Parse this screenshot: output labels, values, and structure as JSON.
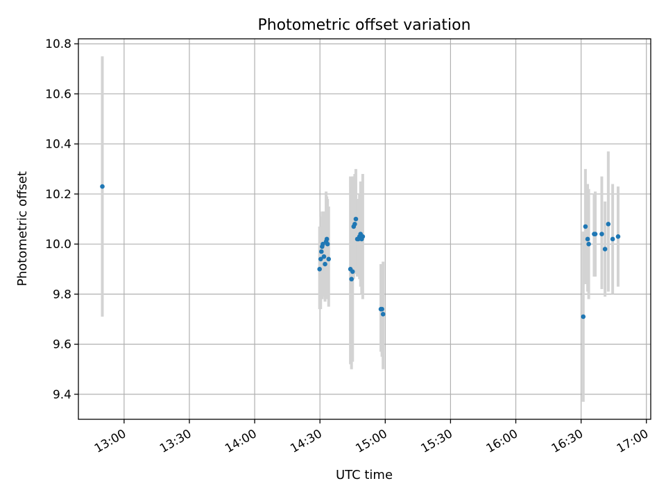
{
  "chart_data": {
    "type": "scatter",
    "title": "Photometric offset variation",
    "xlabel": "UTC time",
    "ylabel": "Photometric offset",
    "x_axis_type": "time",
    "xlim": [
      "12:39",
      "17:02"
    ],
    "ylim": [
      9.3,
      10.82
    ],
    "grid": true,
    "x_ticks": [
      "13:00",
      "13:30",
      "14:00",
      "14:30",
      "15:00",
      "15:30",
      "16:00",
      "16:30",
      "17:00"
    ],
    "y_ticks": [
      "9.4",
      "9.6",
      "9.8",
      "10.0",
      "10.2",
      "10.4",
      "10.6",
      "10.8"
    ],
    "marker_color": "#1f77b4",
    "errorbar_color": "#d3d3d3",
    "series": [
      {
        "points": [
          {
            "x": "12:50:00",
            "y": 10.23,
            "yerr": [
              9.71,
              10.75
            ]
          },
          {
            "x": "14:29:50",
            "y": 9.9,
            "yerr": [
              9.74,
              10.07
            ]
          },
          {
            "x": "14:30:20",
            "y": 9.94,
            "yerr": [
              9.74,
              10.05
            ]
          },
          {
            "x": "14:30:40",
            "y": 9.97,
            "yerr": [
              9.78,
              10.11
            ]
          },
          {
            "x": "14:31:00",
            "y": 9.99,
            "yerr": [
              9.78,
              10.13
            ]
          },
          {
            "x": "14:31:20",
            "y": 10.0,
            "yerr": [
              9.79,
              10.13
            ]
          },
          {
            "x": "14:31:50",
            "y": 9.95,
            "yerr": [
              9.8,
              10.13
            ]
          },
          {
            "x": "14:32:20",
            "y": 9.92,
            "yerr": [
              9.77,
              10.13
            ]
          },
          {
            "x": "14:32:50",
            "y": 10.01,
            "yerr": [
              9.79,
              10.21
            ]
          },
          {
            "x": "14:33:10",
            "y": 10.02,
            "yerr": [
              9.8,
              10.19
            ]
          },
          {
            "x": "14:33:30",
            "y": 10.0,
            "yerr": [
              9.78,
              10.18
            ]
          },
          {
            "x": "14:34:00",
            "y": 9.94,
            "yerr": [
              9.75,
              10.15
            ]
          },
          {
            "x": "14:44:00",
            "y": 9.9,
            "yerr": [
              9.52,
              10.27
            ]
          },
          {
            "x": "14:44:30",
            "y": 9.86,
            "yerr": [
              9.5,
              10.23
            ]
          },
          {
            "x": "14:45:00",
            "y": 9.89,
            "yerr": [
              9.53,
              10.27
            ]
          },
          {
            "x": "14:45:30",
            "y": 10.07,
            "yerr": [
              9.86,
              10.27
            ]
          },
          {
            "x": "14:46:00",
            "y": 10.08,
            "yerr": [
              9.88,
              10.28
            ]
          },
          {
            "x": "14:46:30",
            "y": 10.1,
            "yerr": [
              9.91,
              10.3
            ]
          },
          {
            "x": "14:47:10",
            "y": 10.02,
            "yerr": [
              9.87,
              10.18
            ]
          },
          {
            "x": "14:47:40",
            "y": 10.02,
            "yerr": [
              9.87,
              10.18
            ]
          },
          {
            "x": "14:48:10",
            "y": 10.03,
            "yerr": [
              9.86,
              10.2
            ]
          },
          {
            "x": "14:48:40",
            "y": 10.04,
            "yerr": [
              9.83,
              10.25
            ]
          },
          {
            "x": "14:49:10",
            "y": 10.02,
            "yerr": [
              9.8,
              10.25
            ]
          },
          {
            "x": "14:49:40",
            "y": 10.03,
            "yerr": [
              9.78,
              10.28
            ]
          },
          {
            "x": "14:58:00",
            "y": 9.74,
            "yerr": [
              9.57,
              9.92
            ]
          },
          {
            "x": "14:58:30",
            "y": 9.74,
            "yerr": [
              9.55,
              9.92
            ]
          },
          {
            "x": "14:59:00",
            "y": 9.72,
            "yerr": [
              9.5,
              9.93
            ]
          },
          {
            "x": "16:31:00",
            "y": 9.71,
            "yerr": [
              9.37,
              10.05
            ]
          },
          {
            "x": "16:32:00",
            "y": 10.07,
            "yerr": [
              9.84,
              10.3
            ]
          },
          {
            "x": "16:33:00",
            "y": 10.02,
            "yerr": [
              9.81,
              10.24
            ]
          },
          {
            "x": "16:33:30",
            "y": 10.0,
            "yerr": [
              9.78,
              10.22
            ]
          },
          {
            "x": "16:36:00",
            "y": 10.04,
            "yerr": [
              9.87,
              10.2
            ]
          },
          {
            "x": "16:36:30",
            "y": 10.04,
            "yerr": [
              9.87,
              10.21
            ]
          },
          {
            "x": "16:39:30",
            "y": 10.04,
            "yerr": [
              9.82,
              10.27
            ]
          },
          {
            "x": "16:41:00",
            "y": 9.98,
            "yerr": [
              9.79,
              10.17
            ]
          },
          {
            "x": "16:42:30",
            "y": 10.08,
            "yerr": [
              9.81,
              10.37
            ]
          },
          {
            "x": "16:44:30",
            "y": 10.02,
            "yerr": [
              9.8,
              10.24
            ]
          },
          {
            "x": "16:47:00",
            "y": 10.03,
            "yerr": [
              9.83,
              10.23
            ]
          }
        ]
      }
    ]
  }
}
